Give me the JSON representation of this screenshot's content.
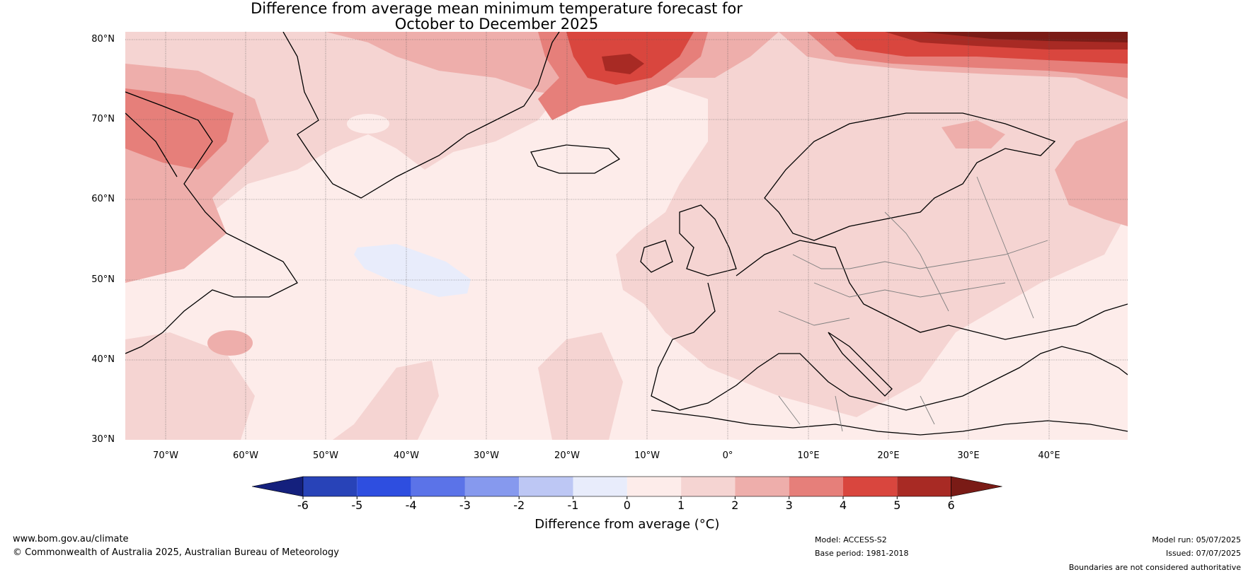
{
  "title_line1": "Difference from average mean minimum temperature forecast for",
  "title_line2": "October to December 2025",
  "lat_labels": [
    "80°N",
    "70°N",
    "60°N",
    "50°N",
    "40°N",
    "30°N"
  ],
  "lon_labels": [
    "70°W",
    "60°W",
    "50°W",
    "40°W",
    "30°W",
    "20°W",
    "10°W",
    "0°",
    "10°E",
    "20°E",
    "30°E",
    "40°E"
  ],
  "colorbar": {
    "ticks": [
      "-6",
      "-5",
      "-4",
      "-3",
      "-2",
      "-1",
      "0",
      "1",
      "2",
      "3",
      "4",
      "5",
      "6"
    ],
    "colors": [
      "#1e2f9d",
      "#2843b8",
      "#2e4ee0",
      "#5b73e8",
      "#8699ee",
      "#bdc7f4",
      "#e8ecfb",
      "#fdecea",
      "#f5d4d2",
      "#eeaeab",
      "#e67f7a",
      "#d9463e",
      "#a82a24"
    ],
    "low_extend_color": "#14207d",
    "high_extend_color": "#7a1b16",
    "label": "Difference from average (°C)"
  },
  "footer": {
    "website": "www.bom.gov.au/climate",
    "copyright": "© Commonwealth of Australia 2025, Australian Bureau of Meteorology",
    "model": "Model: ACCESS-S2",
    "base_period": "Base period: 1981-2018",
    "model_run": "Model run: 05/07/2025",
    "issued": "Issued: 07/07/2025",
    "boundaries": "Boundaries are not considered authoritative"
  }
}
